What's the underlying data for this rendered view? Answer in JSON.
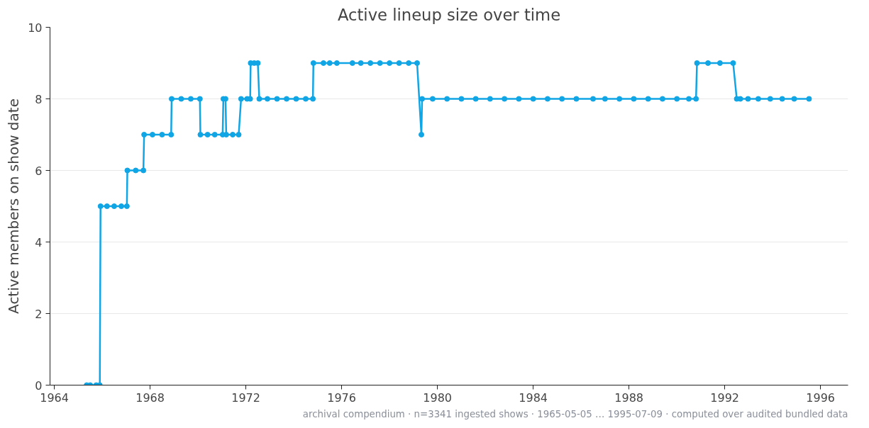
{
  "chart_data": {
    "type": "line",
    "title": "Active lineup size over time",
    "ylabel": "Active members on show date",
    "annotations": [
      "archival compendium · n=3341 ingested shows · 1965-05-05 … 1995-07-09 · computed over audited bundled data"
    ],
    "xlim": [
      1963.82,
      1997.15
    ],
    "xticks": [
      1964,
      1968,
      1972,
      1976,
      1980,
      1984,
      1988,
      1992,
      1996
    ],
    "ylim": [
      0,
      10
    ],
    "yticks": [
      0,
      2,
      4,
      6,
      8,
      10
    ],
    "grid": "y",
    "marker": "circle",
    "line_style": "solid",
    "series": [
      {
        "color": "#10a5e5",
        "x": [
          1965.35,
          1965.5,
          1965.75,
          1965.9,
          1965.93,
          1966.2,
          1966.5,
          1966.8,
          1967.03,
          1967.05,
          1967.4,
          1967.72,
          1967.75,
          1968.1,
          1968.5,
          1968.88,
          1968.9,
          1969.3,
          1969.7,
          1970.08,
          1970.1,
          1970.4,
          1970.7,
          1971.03,
          1971.06,
          1971.15,
          1971.18,
          1971.45,
          1971.7,
          1971.8,
          1972.05,
          1972.18,
          1972.2,
          1972.35,
          1972.5,
          1972.56,
          1972.9,
          1973.3,
          1973.7,
          1974.1,
          1974.5,
          1974.8,
          1974.82,
          1975.24,
          1975.5,
          1975.8,
          1976.45,
          1976.8,
          1977.2,
          1977.6,
          1978.0,
          1978.4,
          1978.8,
          1979.15,
          1979.33,
          1979.36,
          1979.8,
          1980.4,
          1981.0,
          1981.6,
          1982.2,
          1982.8,
          1983.4,
          1984.0,
          1984.6,
          1985.2,
          1985.8,
          1986.5,
          1987.0,
          1987.6,
          1988.2,
          1988.8,
          1989.4,
          1990.0,
          1990.5,
          1990.8,
          1990.84,
          1991.3,
          1991.8,
          1992.35,
          1992.5,
          1992.65,
          1992.97,
          1993.4,
          1993.9,
          1994.4,
          1994.9,
          1995.52
        ],
        "values": [
          0,
          0,
          0,
          0,
          5,
          5,
          5,
          5,
          5,
          6,
          6,
          6,
          7,
          7,
          7,
          7,
          8,
          8,
          8,
          8,
          7,
          7,
          7,
          7,
          8,
          8,
          7,
          7,
          7,
          8,
          8,
          8,
          9,
          9,
          9,
          8,
          8,
          8,
          8,
          8,
          8,
          8,
          9,
          9,
          9,
          9,
          9,
          9,
          9,
          9,
          9,
          9,
          9,
          9,
          7,
          8,
          8,
          8,
          8,
          8,
          8,
          8,
          8,
          8,
          8,
          8,
          8,
          8,
          8,
          8,
          8,
          8,
          8,
          8,
          8,
          8,
          9,
          9,
          9,
          9,
          8,
          8,
          8,
          8,
          8,
          8,
          8,
          8
        ]
      }
    ]
  }
}
